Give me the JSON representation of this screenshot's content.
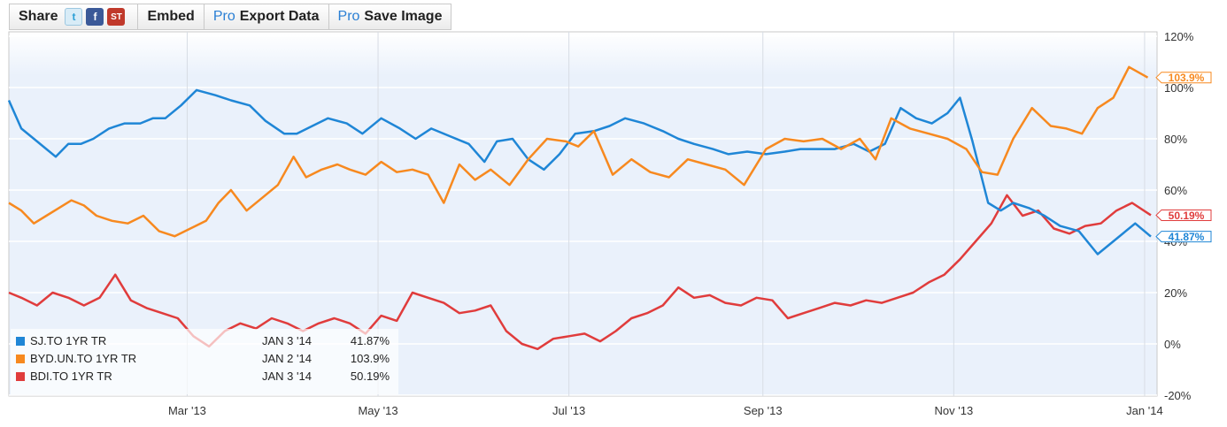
{
  "toolbar": {
    "share_label": "Share",
    "twitter_icon": "twitter-icon",
    "facebook_icon": "facebook-icon",
    "stocktwits_icon": "stocktwits-icon",
    "embed_label": "Embed",
    "pro_label": "Pro",
    "export_label": "Export Data",
    "save_label": "Save Image"
  },
  "chart_data": {
    "type": "line",
    "x_ticks": [
      "Mar '13",
      "May '13",
      "Jul '13",
      "Sep '13",
      "Nov '13",
      "Jan '14"
    ],
    "y_ticks": [
      "120%",
      "100%",
      "80%",
      "60%",
      "40%",
      "20%",
      "0%",
      "-20%"
    ],
    "ylim": [
      -20,
      120
    ],
    "grid": true,
    "legend_position": "bottom-left",
    "series": [
      {
        "name": "SJ.TO 1YR TR",
        "date": "JAN 3 '14",
        "last_value": "41.87%",
        "color": "#1f86d6",
        "x": [
          "2013-01-03",
          "2013-01-07",
          "2013-01-11",
          "2013-01-15",
          "2013-01-18",
          "2013-01-22",
          "2013-01-26",
          "2013-01-30",
          "2013-02-04",
          "2013-02-09",
          "2013-02-14",
          "2013-02-18",
          "2013-02-22",
          "2013-02-27",
          "2013-03-04",
          "2013-03-10",
          "2013-03-15",
          "2013-03-21",
          "2013-03-26",
          "2013-04-01",
          "2013-04-05",
          "2013-04-10",
          "2013-04-15",
          "2013-04-21",
          "2013-04-26",
          "2013-05-02",
          "2013-05-08",
          "2013-05-13",
          "2013-05-18",
          "2013-05-24",
          "2013-05-30",
          "2013-06-04",
          "2013-06-08",
          "2013-06-13",
          "2013-06-18",
          "2013-06-23",
          "2013-06-28",
          "2013-07-03",
          "2013-07-09",
          "2013-07-14",
          "2013-07-19",
          "2013-07-25",
          "2013-07-31",
          "2013-08-05",
          "2013-08-10",
          "2013-08-16",
          "2013-08-21",
          "2013-08-27",
          "2013-09-02",
          "2013-09-08",
          "2013-09-13",
          "2013-09-18",
          "2013-09-24",
          "2013-09-30",
          "2013-10-05",
          "2013-10-10",
          "2013-10-15",
          "2013-10-20",
          "2013-10-25",
          "2013-10-30",
          "2013-11-03",
          "2013-11-07",
          "2013-11-12",
          "2013-11-16",
          "2013-11-20",
          "2013-11-25",
          "2013-11-30",
          "2013-12-05",
          "2013-12-11",
          "2013-12-17",
          "2013-12-23",
          "2013-12-29",
          "2014-01-03"
        ],
        "y": [
          95,
          84,
          80,
          76,
          73,
          78,
          78,
          80,
          84,
          86,
          86,
          88,
          88,
          93,
          99,
          97,
          95,
          93,
          87,
          82,
          82,
          85,
          88,
          86,
          82,
          88,
          84,
          80,
          84,
          81,
          78,
          71,
          79,
          80,
          72,
          68,
          74,
          82,
          83,
          85,
          88,
          86,
          83,
          80,
          78,
          76,
          74,
          75,
          74,
          75,
          76,
          76,
          76,
          78,
          75,
          78,
          92,
          88,
          86,
          90,
          96,
          79,
          55,
          52,
          55,
          53,
          50,
          46,
          44,
          35,
          41,
          47,
          41.87
        ]
      },
      {
        "name": "BYD.UN.TO 1YR TR",
        "date": "JAN 2 '14",
        "last_value": "103.9%",
        "color": "#f7891f",
        "x": [
          "2013-01-03",
          "2013-01-07",
          "2013-01-11",
          "2013-01-15",
          "2013-01-19",
          "2013-01-23",
          "2013-01-27",
          "2013-01-31",
          "2013-02-05",
          "2013-02-10",
          "2013-02-15",
          "2013-02-20",
          "2013-02-25",
          "2013-03-02",
          "2013-03-07",
          "2013-03-11",
          "2013-03-15",
          "2013-03-20",
          "2013-03-25",
          "2013-03-30",
          "2013-04-04",
          "2013-04-08",
          "2013-04-13",
          "2013-04-18",
          "2013-04-22",
          "2013-04-27",
          "2013-05-02",
          "2013-05-07",
          "2013-05-12",
          "2013-05-17",
          "2013-05-22",
          "2013-05-27",
          "2013-06-01",
          "2013-06-06",
          "2013-06-12",
          "2013-06-18",
          "2013-06-24",
          "2013-06-30",
          "2013-07-04",
          "2013-07-09",
          "2013-07-15",
          "2013-07-21",
          "2013-07-27",
          "2013-08-02",
          "2013-08-08",
          "2013-08-14",
          "2013-08-20",
          "2013-08-26",
          "2013-09-02",
          "2013-09-08",
          "2013-09-14",
          "2013-09-20",
          "2013-09-26",
          "2013-10-02",
          "2013-10-07",
          "2013-10-12",
          "2013-10-18",
          "2013-10-24",
          "2013-10-30",
          "2013-11-05",
          "2013-11-10",
          "2013-11-15",
          "2013-11-20",
          "2013-11-26",
          "2013-12-02",
          "2013-12-07",
          "2013-12-12",
          "2013-12-17",
          "2013-12-22",
          "2013-12-27",
          "2014-01-02"
        ],
        "y": [
          55,
          52,
          47,
          50,
          53,
          56,
          54,
          50,
          48,
          47,
          50,
          44,
          42,
          45,
          48,
          55,
          60,
          52,
          57,
          62,
          73,
          65,
          68,
          70,
          68,
          66,
          71,
          67,
          68,
          66,
          55,
          70,
          64,
          68,
          62,
          72,
          80,
          79,
          77,
          83,
          66,
          72,
          67,
          65,
          72,
          70,
          68,
          62,
          76,
          80,
          79,
          80,
          76,
          80,
          72,
          88,
          84,
          82,
          80,
          76,
          67,
          66,
          80,
          92,
          85,
          84,
          82,
          92,
          96,
          108,
          103.9
        ]
      },
      {
        "name": "BDI.TO 1YR TR",
        "date": "JAN 3 '14",
        "last_value": "50.19%",
        "color": "#e03c3c",
        "x": [
          "2013-01-03",
          "2013-01-07",
          "2013-01-12",
          "2013-01-17",
          "2013-01-22",
          "2013-01-27",
          "2013-02-01",
          "2013-02-06",
          "2013-02-11",
          "2013-02-16",
          "2013-02-21",
          "2013-02-26",
          "2013-03-03",
          "2013-03-08",
          "2013-03-13",
          "2013-03-18",
          "2013-03-23",
          "2013-03-28",
          "2013-04-02",
          "2013-04-07",
          "2013-04-12",
          "2013-04-17",
          "2013-04-22",
          "2013-04-27",
          "2013-05-02",
          "2013-05-07",
          "2013-05-12",
          "2013-05-17",
          "2013-05-22",
          "2013-05-27",
          "2013-06-01",
          "2013-06-06",
          "2013-06-11",
          "2013-06-16",
          "2013-06-21",
          "2013-06-26",
          "2013-07-01",
          "2013-07-06",
          "2013-07-11",
          "2013-07-16",
          "2013-07-21",
          "2013-07-26",
          "2013-07-31",
          "2013-08-05",
          "2013-08-10",
          "2013-08-15",
          "2013-08-20",
          "2013-08-25",
          "2013-08-30",
          "2013-09-04",
          "2013-09-09",
          "2013-09-14",
          "2013-09-19",
          "2013-09-24",
          "2013-09-29",
          "2013-10-04",
          "2013-10-09",
          "2013-10-14",
          "2013-10-19",
          "2013-10-24",
          "2013-10-29",
          "2013-11-03",
          "2013-11-08",
          "2013-11-13",
          "2013-11-18",
          "2013-11-23",
          "2013-11-28",
          "2013-12-03",
          "2013-12-08",
          "2013-12-13",
          "2013-12-18",
          "2013-12-23",
          "2013-12-28",
          "2014-01-03"
        ],
        "y": [
          20,
          18,
          15,
          20,
          18,
          15,
          18,
          27,
          17,
          14,
          12,
          10,
          3,
          -1,
          5,
          8,
          6,
          10,
          8,
          5,
          8,
          10,
          8,
          4,
          11,
          9,
          20,
          18,
          16,
          12,
          13,
          15,
          5,
          0,
          -2,
          2,
          3,
          4,
          1,
          5,
          10,
          12,
          15,
          22,
          18,
          19,
          16,
          15,
          18,
          17,
          10,
          12,
          14,
          16,
          15,
          17,
          16,
          18,
          20,
          24,
          27,
          33,
          40,
          47,
          58,
          50,
          52,
          45,
          43,
          46,
          47,
          52,
          55,
          50.19
        ]
      }
    ]
  }
}
